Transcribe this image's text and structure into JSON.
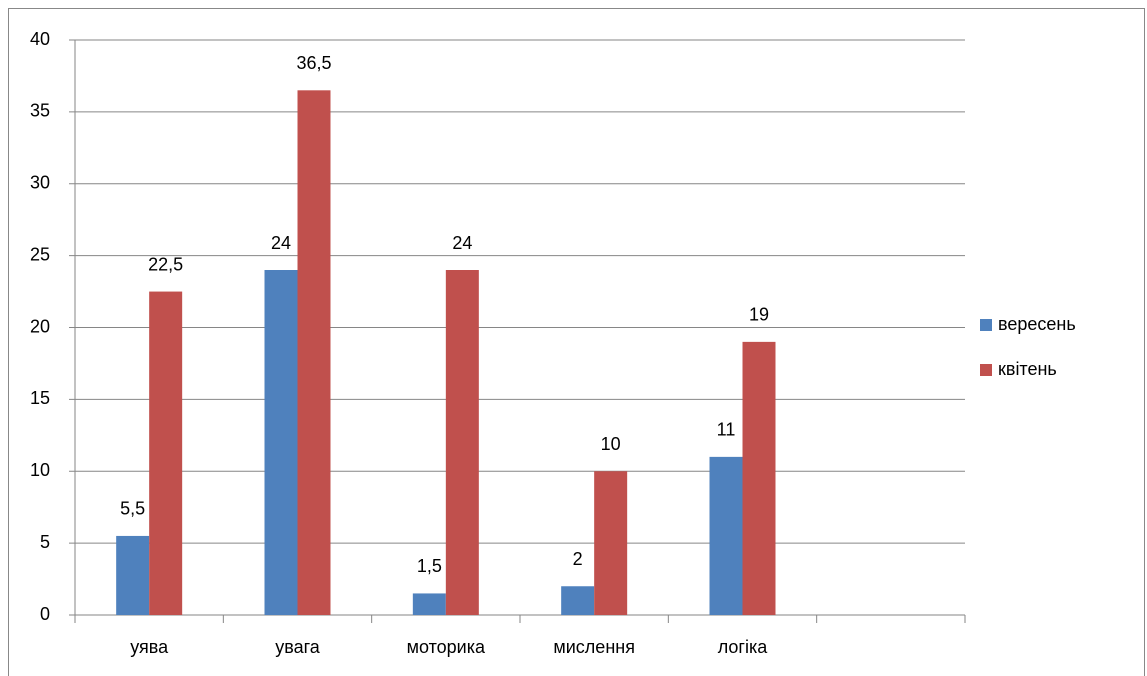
{
  "chart_data": {
    "type": "bar",
    "categories": [
      "уява",
      "увага",
      "моторика",
      "мислення",
      "логіка",
      null
    ],
    "series": [
      {
        "name": "вересень",
        "color": "#4f81bd",
        "values": [
          5.5,
          24,
          1.5,
          2,
          11,
          null
        ],
        "value_labels": [
          "5,5",
          "24",
          "1,5",
          "2",
          "11",
          null
        ]
      },
      {
        "name": "квітень",
        "color": "#c0504d",
        "values": [
          22.5,
          36.5,
          24,
          10,
          19,
          null
        ],
        "value_labels": [
          "22,5",
          "36,5",
          "24",
          "10",
          "19",
          null
        ]
      }
    ],
    "ylim": [
      0,
      40
    ],
    "yticks": [
      0,
      5,
      10,
      15,
      20,
      25,
      30,
      35,
      40
    ],
    "grid": true,
    "legend": "right"
  }
}
